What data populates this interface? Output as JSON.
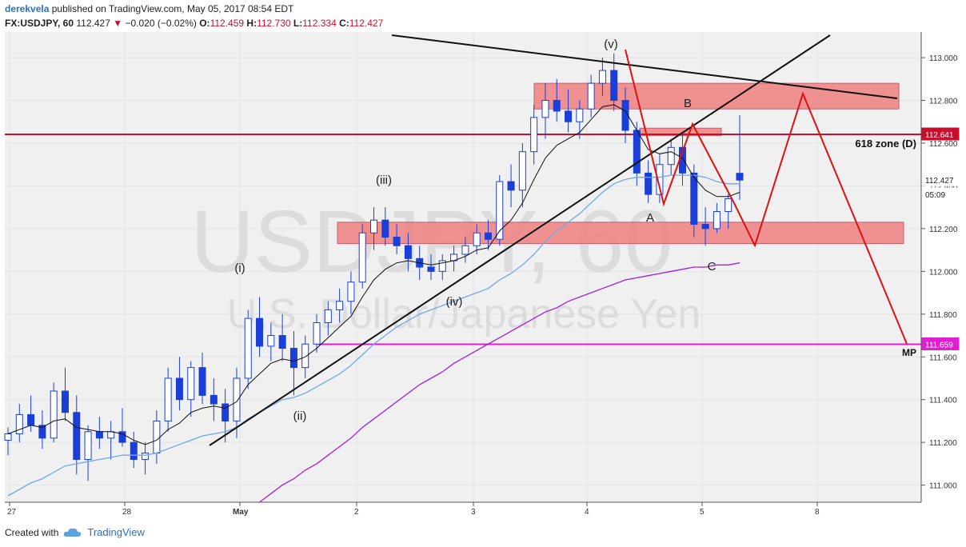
{
  "header": {
    "user": "derekvela",
    "published_text": "published on TradingView.com, May 05, 2017 08:54 EDT",
    "symbol": "FX:USDJPY, 60",
    "last": "112.427",
    "change": "−0.020 (−0.02%)",
    "o_label": "O:",
    "o": "112.459",
    "h_label": "H:",
    "h": "112.730",
    "l_label": "L:",
    "l": "112.334",
    "c_label": "C:",
    "c": "112.427"
  },
  "watermark": {
    "symbol": "USDJPY, 60",
    "name": "U.S. Dollar/Japanese Yen"
  },
  "chart_data": {
    "type": "candlestick",
    "symbol": "FX:USDJPY",
    "interval": "60",
    "ylim": [
      110.92,
      113.12
    ],
    "y_ticks": [
      "113.000",
      "112.800",
      "112.600",
      "112.400",
      "112.200",
      "112.000",
      "111.800",
      "111.600",
      "111.400",
      "111.200",
      "111.000"
    ],
    "x_ticks": [
      "27",
      "28",
      "May",
      "2",
      "3",
      "4",
      "5",
      "8"
    ],
    "price_tags": [
      {
        "label": "112.641",
        "value": 112.641,
        "color": "#c8102e"
      },
      {
        "label": "112.427",
        "value": 112.427,
        "color": "#ffffff"
      },
      {
        "label": "05:09",
        "value": 112.36,
        "color": "#ffffff"
      },
      {
        "label": "111.659",
        "value": 111.659,
        "color": "#e020d0"
      }
    ],
    "horizontal_lines": [
      {
        "name": "618 zone (D)",
        "value": 112.641,
        "color": "#c8102e"
      },
      {
        "name": "MP",
        "value": 111.659,
        "color": "#e020d0"
      }
    ],
    "zones": [
      {
        "from": 112.76,
        "to": 112.88,
        "color": "#f08080"
      },
      {
        "from": 112.635,
        "to": 112.67,
        "color": "#f08080"
      },
      {
        "from": 112.13,
        "to": 112.23,
        "color": "#f08080"
      }
    ],
    "wave_labels": [
      "(i)",
      "(ii)",
      "(iii)",
      "(iv)",
      "(v)",
      "A",
      "B",
      "C"
    ],
    "zone_label": "618 zone (D)",
    "mp_label": "MP",
    "ohlc_series": [
      {
        "x": "Apr 27",
        "open": 111.21,
        "high": 111.27,
        "low": 111.14,
        "close": 111.24
      },
      {
        "x": "Apr 27",
        "open": 111.24,
        "high": 111.38,
        "low": 111.2,
        "close": 111.33
      },
      {
        "x": "Apr 27",
        "open": 111.33,
        "high": 111.42,
        "low": 111.25,
        "close": 111.28
      },
      {
        "x": "Apr 27",
        "open": 111.28,
        "high": 111.35,
        "low": 111.17,
        "close": 111.22
      },
      {
        "x": "Apr 27",
        "open": 111.22,
        "high": 111.48,
        "low": 111.2,
        "close": 111.44
      },
      {
        "x": "Apr 27",
        "open": 111.44,
        "high": 111.55,
        "low": 111.3,
        "close": 111.34
      },
      {
        "x": "Apr 27",
        "open": 111.34,
        "high": 111.42,
        "low": 111.05,
        "close": 111.12
      },
      {
        "x": "Apr 27",
        "open": 111.12,
        "high": 111.28,
        "low": 111.02,
        "close": 111.25
      },
      {
        "x": "Apr 27",
        "open": 111.25,
        "high": 111.32,
        "low": 111.17,
        "close": 111.22
      },
      {
        "x": "Apr 27",
        "open": 111.22,
        "high": 111.3,
        "low": 111.12,
        "close": 111.25
      },
      {
        "x": "Apr 28",
        "open": 111.25,
        "high": 111.36,
        "low": 111.18,
        "close": 111.2
      },
      {
        "x": "Apr 28",
        "open": 111.2,
        "high": 111.25,
        "low": 111.08,
        "close": 111.12
      },
      {
        "x": "Apr 28",
        "open": 111.12,
        "high": 111.2,
        "low": 111.05,
        "close": 111.15
      },
      {
        "x": "Apr 28",
        "open": 111.15,
        "high": 111.35,
        "low": 111.1,
        "close": 111.3
      },
      {
        "x": "Apr 28",
        "open": 111.3,
        "high": 111.55,
        "low": 111.25,
        "close": 111.5
      },
      {
        "x": "Apr 28",
        "open": 111.5,
        "high": 111.6,
        "low": 111.35,
        "close": 111.4
      },
      {
        "x": "Apr 28",
        "open": 111.4,
        "high": 111.58,
        "low": 111.32,
        "close": 111.55
      },
      {
        "x": "Apr 28",
        "open": 111.55,
        "high": 111.62,
        "low": 111.38,
        "close": 111.42
      },
      {
        "x": "Apr 28",
        "open": 111.42,
        "high": 111.5,
        "low": 111.3,
        "close": 111.38
      },
      {
        "x": "Apr 28",
        "open": 111.38,
        "high": 111.45,
        "low": 111.2,
        "close": 111.3
      },
      {
        "x": "May 1",
        "open": 111.3,
        "high": 111.55,
        "low": 111.22,
        "close": 111.5
      },
      {
        "x": "May 1",
        "open": 111.5,
        "high": 111.82,
        "low": 111.45,
        "close": 111.78
      },
      {
        "x": "May 1",
        "open": 111.78,
        "high": 111.88,
        "low": 111.6,
        "close": 111.65
      },
      {
        "x": "May 1",
        "open": 111.65,
        "high": 111.76,
        "low": 111.58,
        "close": 111.7
      },
      {
        "x": "May 1",
        "open": 111.7,
        "high": 111.8,
        "low": 111.58,
        "close": 111.64
      },
      {
        "x": "May 1",
        "open": 111.64,
        "high": 111.72,
        "low": 111.42,
        "close": 111.55
      },
      {
        "x": "May 1",
        "open": 111.55,
        "high": 111.7,
        "low": 111.5,
        "close": 111.66
      },
      {
        "x": "May 1",
        "open": 111.66,
        "high": 111.8,
        "low": 111.62,
        "close": 111.76
      },
      {
        "x": "May 1",
        "open": 111.76,
        "high": 111.86,
        "low": 111.7,
        "close": 111.82
      },
      {
        "x": "May 1",
        "open": 111.82,
        "high": 111.92,
        "low": 111.76,
        "close": 111.86
      },
      {
        "x": "May 2",
        "open": 111.86,
        "high": 112.0,
        "low": 111.8,
        "close": 111.95
      },
      {
        "x": "May 2",
        "open": 111.95,
        "high": 112.22,
        "low": 111.92,
        "close": 112.18
      },
      {
        "x": "May 2",
        "open": 112.18,
        "high": 112.3,
        "low": 112.1,
        "close": 112.24
      },
      {
        "x": "May 2",
        "open": 112.24,
        "high": 112.3,
        "low": 112.12,
        "close": 112.16
      },
      {
        "x": "May 2",
        "open": 112.16,
        "high": 112.22,
        "low": 112.08,
        "close": 112.12
      },
      {
        "x": "May 2",
        "open": 112.12,
        "high": 112.18,
        "low": 112.0,
        "close": 112.06
      },
      {
        "x": "May 2",
        "open": 112.06,
        "high": 112.12,
        "low": 111.96,
        "close": 112.02
      },
      {
        "x": "May 2",
        "open": 112.02,
        "high": 112.08,
        "low": 111.96,
        "close": 112.0
      },
      {
        "x": "May 2",
        "open": 112.0,
        "high": 112.08,
        "low": 111.96,
        "close": 112.05
      },
      {
        "x": "May 2",
        "open": 112.05,
        "high": 112.12,
        "low": 112.0,
        "close": 112.08
      },
      {
        "x": "May 3",
        "open": 112.08,
        "high": 112.16,
        "low": 112.04,
        "close": 112.12
      },
      {
        "x": "May 3",
        "open": 112.12,
        "high": 112.22,
        "low": 112.08,
        "close": 112.18
      },
      {
        "x": "May 3",
        "open": 112.18,
        "high": 112.24,
        "low": 112.1,
        "close": 112.15
      },
      {
        "x": "May 3",
        "open": 112.15,
        "high": 112.45,
        "low": 112.12,
        "close": 112.42
      },
      {
        "x": "May 3",
        "open": 112.42,
        "high": 112.5,
        "low": 112.3,
        "close": 112.38
      },
      {
        "x": "May 3",
        "open": 112.38,
        "high": 112.6,
        "low": 112.3,
        "close": 112.56
      },
      {
        "x": "May 3",
        "open": 112.56,
        "high": 112.78,
        "low": 112.5,
        "close": 112.72
      },
      {
        "x": "May 3",
        "open": 112.72,
        "high": 112.88,
        "low": 112.62,
        "close": 112.8
      },
      {
        "x": "May 3",
        "open": 112.8,
        "high": 112.9,
        "low": 112.7,
        "close": 112.75
      },
      {
        "x": "May 4",
        "open": 112.75,
        "high": 112.85,
        "low": 112.65,
        "close": 112.7
      },
      {
        "x": "May 4",
        "open": 112.7,
        "high": 112.8,
        "low": 112.62,
        "close": 112.76
      },
      {
        "x": "May 4",
        "open": 112.76,
        "high": 112.92,
        "low": 112.72,
        "close": 112.88
      },
      {
        "x": "May 4",
        "open": 112.88,
        "high": 113.0,
        "low": 112.82,
        "close": 112.94
      },
      {
        "x": "May 4",
        "open": 112.94,
        "high": 113.02,
        "low": 112.75,
        "close": 112.8
      },
      {
        "x": "May 4",
        "open": 112.8,
        "high": 112.86,
        "low": 112.6,
        "close": 112.66
      },
      {
        "x": "May 4",
        "open": 112.66,
        "high": 112.7,
        "low": 112.4,
        "close": 112.46
      },
      {
        "x": "May 4",
        "open": 112.46,
        "high": 112.52,
        "low": 112.32,
        "close": 112.36
      },
      {
        "x": "May 4",
        "open": 112.36,
        "high": 112.55,
        "low": 112.32,
        "close": 112.5
      },
      {
        "x": "May 4",
        "open": 112.5,
        "high": 112.62,
        "low": 112.45,
        "close": 112.58
      },
      {
        "x": "May 5",
        "open": 112.58,
        "high": 112.64,
        "low": 112.4,
        "close": 112.46
      },
      {
        "x": "May 5",
        "open": 112.46,
        "high": 112.5,
        "low": 112.16,
        "close": 112.22
      },
      {
        "x": "May 5",
        "open": 112.22,
        "high": 112.3,
        "low": 112.12,
        "close": 112.2
      },
      {
        "x": "May 5",
        "open": 112.2,
        "high": 112.32,
        "low": 112.18,
        "close": 112.28
      },
      {
        "x": "May 5",
        "open": 112.28,
        "high": 112.36,
        "low": 112.2,
        "close": 112.34
      },
      {
        "x": "May 5",
        "open": 112.459,
        "high": 112.73,
        "low": 112.334,
        "close": 112.427
      }
    ],
    "ema_short": [
      111.24,
      111.26,
      111.28,
      111.27,
      111.3,
      111.31,
      111.27,
      111.26,
      111.25,
      111.25,
      111.24,
      111.21,
      111.19,
      111.21,
      111.26,
      111.29,
      111.34,
      111.36,
      111.37,
      111.36,
      111.39,
      111.47,
      111.52,
      111.57,
      111.59,
      111.58,
      111.6,
      111.64,
      111.69,
      111.74,
      111.79,
      111.88,
      111.96,
      112.01,
      112.04,
      112.05,
      112.04,
      112.03,
      112.04,
      112.05,
      112.07,
      112.1,
      112.11,
      112.19,
      112.24,
      112.32,
      112.43,
      112.53,
      112.59,
      112.62,
      112.65,
      112.71,
      112.77,
      112.78,
      112.75,
      112.66,
      112.57,
      112.55,
      112.56,
      112.53,
      112.44,
      112.38,
      112.35,
      112.35,
      112.37
    ],
    "ema_mid": [
      110.95,
      110.98,
      111.01,
      111.03,
      111.06,
      111.09,
      111.1,
      111.11,
      111.12,
      111.13,
      111.14,
      111.14,
      111.14,
      111.15,
      111.17,
      111.19,
      111.21,
      111.23,
      111.24,
      111.25,
      111.27,
      111.31,
      111.34,
      111.37,
      111.4,
      111.41,
      111.43,
      111.46,
      111.49,
      111.52,
      111.56,
      111.61,
      111.66,
      111.7,
      111.74,
      111.77,
      111.8,
      111.82,
      111.84,
      111.86,
      111.88,
      111.9,
      111.92,
      111.96,
      111.99,
      112.03,
      112.08,
      112.14,
      112.19,
      112.23,
      112.27,
      112.32,
      112.37,
      112.41,
      112.43,
      112.44,
      112.44,
      112.44,
      112.45,
      112.45,
      112.45,
      112.44,
      112.42,
      112.41,
      112.41
    ],
    "ema_long": [
      null,
      null,
      null,
      null,
      null,
      null,
      null,
      null,
      null,
      null,
      null,
      null,
      null,
      null,
      null,
      null,
      null,
      null,
      null,
      null,
      null,
      null,
      110.92,
      110.96,
      111.0,
      111.03,
      111.07,
      111.1,
      111.14,
      111.18,
      111.22,
      111.27,
      111.31,
      111.35,
      111.39,
      111.43,
      111.47,
      111.5,
      111.53,
      111.57,
      111.6,
      111.63,
      111.66,
      111.69,
      111.72,
      111.75,
      111.78,
      111.81,
      111.83,
      111.86,
      111.88,
      111.9,
      111.92,
      111.94,
      111.96,
      111.97,
      111.98,
      111.99,
      112.0,
      112.01,
      112.02,
      112.02,
      112.03,
      112.03,
      112.04
    ]
  },
  "footer": {
    "created_with": "Created with",
    "brand": "TradingView"
  }
}
